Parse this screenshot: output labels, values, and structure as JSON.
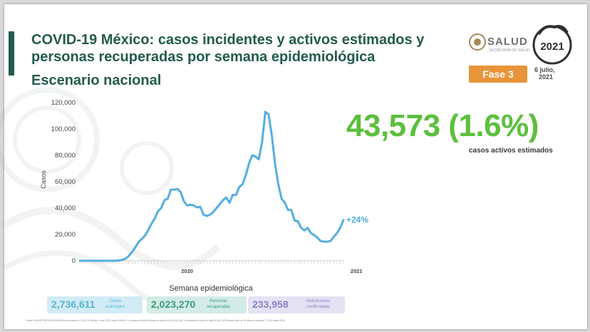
{
  "header": {
    "title": "COVID-19 México: casos incidentes y activos estimados y personas recuperadas por semana epidemiológica",
    "subtitle": "Escenario nacional"
  },
  "logos": {
    "salud": "SALUD",
    "salud_sub": "SECRETARÍA DE SALUD",
    "year": "2021"
  },
  "badge": {
    "fase": "Fase 3",
    "fecha_line1": "6 julio,",
    "fecha_line2": "2021"
  },
  "highlight": {
    "value": "43,573 (1.6%)",
    "label": "casos activos estimados",
    "color": "#5bbf3d"
  },
  "summary": [
    {
      "value": "2,736,611",
      "label_l1": "Casos",
      "label_l2": "estimados",
      "bg": "#d2ecf5",
      "color": "#5ab4db"
    },
    {
      "value": "2,023,270",
      "label_l1": "Personas",
      "label_l2": "recuperadas",
      "bg": "#d3ece6",
      "color": "#3e9b7e"
    },
    {
      "value": "233,958",
      "label_l1": "Defunciones",
      "label_l2": "confirmadas",
      "bg": "#e4e2f3",
      "color": "#8a82c8"
    }
  ],
  "footer": "Fuente: SSA/SPPS/DGE/DIE/InDRE/Informe técnico COVID-19 México. 6 julio 2021 (corte 9:00hrs). La población total de México se estima en 126,014,024, y la población mayor de edad 91,641,169 (comprenden de 18 años en adelante, 75 013 antes 2015).",
  "chart_data": {
    "type": "line",
    "xlabel": "Semana epidemiológica",
    "ylabel": "Casos",
    "ylim": [
      0,
      120000
    ],
    "yticks": [
      0,
      20000,
      40000,
      60000,
      80000,
      100000,
      120000
    ],
    "ytick_labels": [
      "0",
      "20,000",
      "40,000",
      "60,000",
      "80,000",
      "100,000",
      "120,000"
    ],
    "year_labels": [
      {
        "label": "2020",
        "week_index": 33
      },
      {
        "label": "2021",
        "week_index": 85
      }
    ],
    "annotation": "+24%",
    "color": "#55aee0",
    "series": [
      {
        "values": [
          0,
          0,
          0,
          0,
          0,
          0,
          0,
          0,
          0,
          0,
          0,
          0,
          200,
          600,
          1500,
          3500,
          6500,
          10000,
          14000,
          16500,
          19000,
          23000,
          28000,
          32000,
          37500,
          40000,
          46000,
          47000,
          54000,
          54000,
          54500,
          52000,
          45000,
          42000,
          42500,
          42000,
          40500,
          41000,
          35000,
          34000,
          35000,
          37000,
          40000,
          43000,
          46000,
          48000,
          44000,
          50000,
          50000,
          56000,
          58000,
          65000,
          74000,
          80000,
          79000,
          77000,
          90000,
          113000,
          111000,
          95000,
          73000,
          58000,
          47000,
          44000,
          38500,
          38500,
          30500,
          30000,
          25000,
          23000,
          25000,
          21000,
          19500,
          17500,
          15000,
          14500,
          14500,
          15000,
          18000,
          21000,
          25000,
          31000
        ]
      }
    ]
  }
}
